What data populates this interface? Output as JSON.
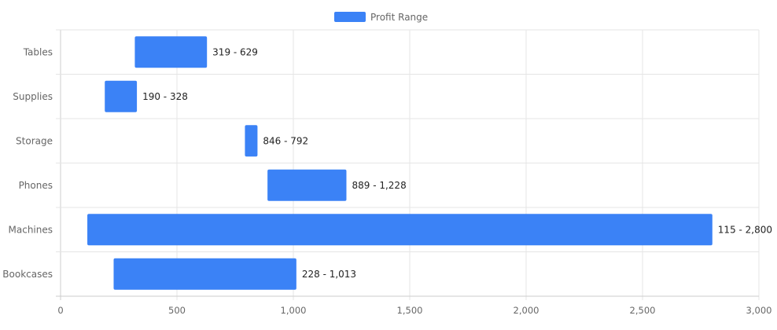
{
  "chart_data": {
    "type": "bar",
    "orientation": "horizontal",
    "floating": true,
    "legend": {
      "label": "Profit Range",
      "position": "top"
    },
    "categories": [
      "Tables",
      "Supplies",
      "Storage",
      "Phones",
      "Machines",
      "Bookcases"
    ],
    "series": [
      {
        "name": "Profit Range",
        "color": "#3b82f6",
        "ranges": [
          [
            319,
            629
          ],
          [
            190,
            328
          ],
          [
            846,
            792
          ],
          [
            889,
            1228
          ],
          [
            115,
            2800
          ],
          [
            228,
            1013
          ]
        ],
        "labels": [
          "319 - 629",
          "190 - 328",
          "846 - 792",
          "889 - 1,228",
          "115 - 2,800",
          "228 - 1,013"
        ]
      }
    ],
    "xlim": [
      0,
      3000
    ],
    "xticks": [
      0,
      500,
      1000,
      1500,
      2000,
      2500,
      3000
    ],
    "xtick_labels": [
      "0",
      "500",
      "1,000",
      "1,500",
      "2,000",
      "2,500",
      "3,000"
    ],
    "grid": true
  }
}
